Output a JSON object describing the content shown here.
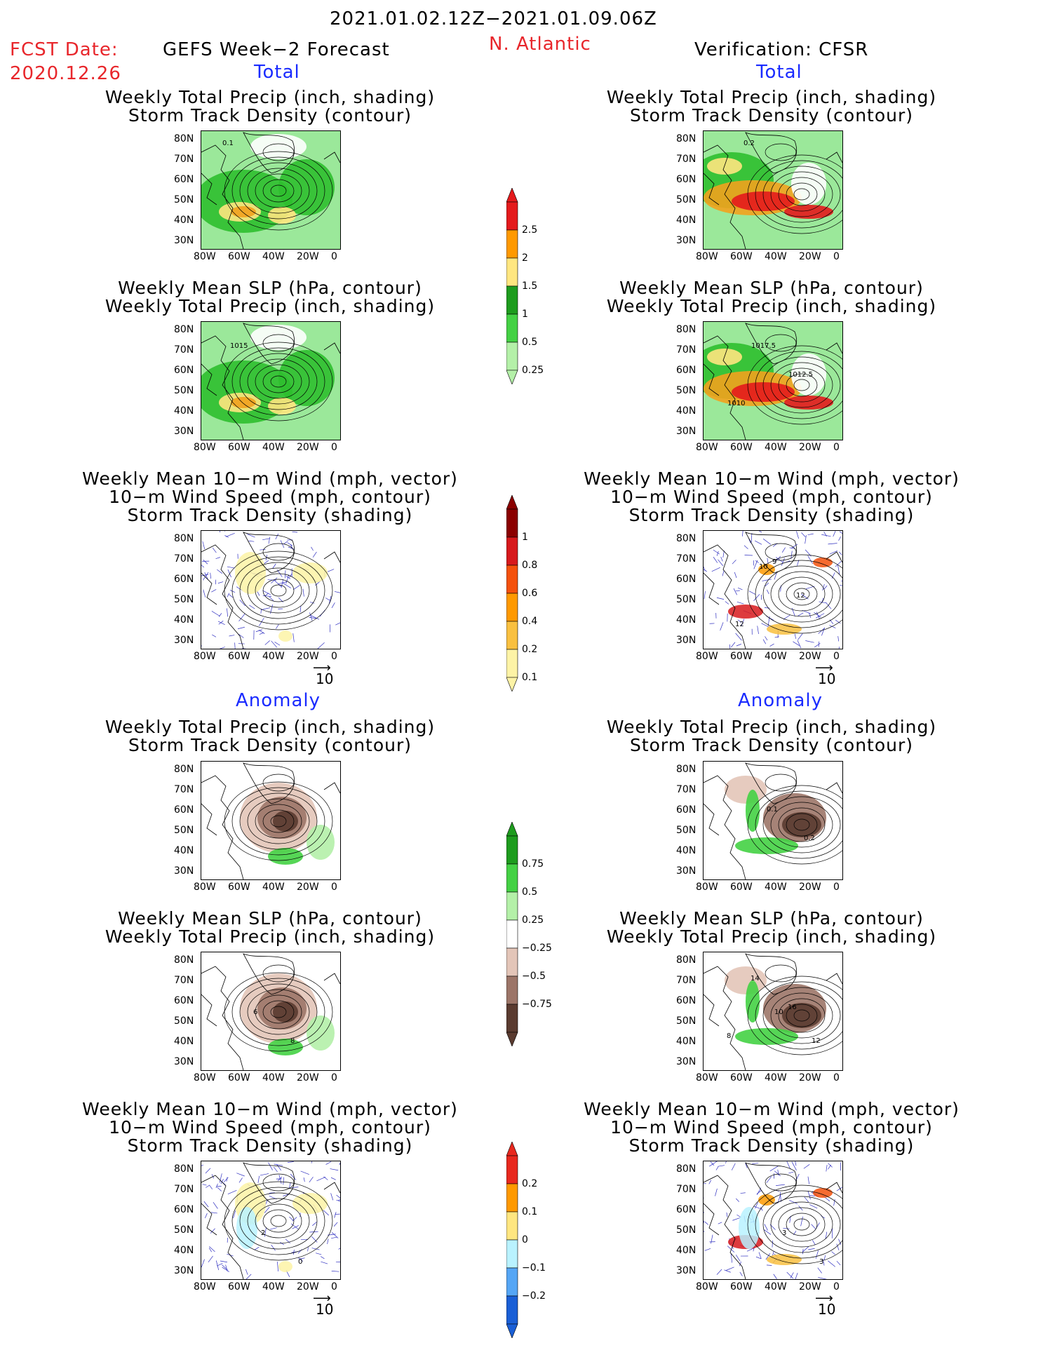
{
  "header": {
    "period": "2021.01.02.12Z−2021.01.09.06Z",
    "fcst_date_label": "FCST Date:",
    "fcst_date": "2020.12.26",
    "left_title": "GEFS Week−2 Forecast",
    "region": "N. Atlantic",
    "right_title": "Verification: CFSR"
  },
  "sections": {
    "total": "Total",
    "anomaly": "Anomaly"
  },
  "panel_titles": {
    "precip_track": [
      "Weekly Total Precip (inch, shading)",
      "Storm Track Density (contour)"
    ],
    "slp_precip": [
      "Weekly Mean SLP (hPa, contour)",
      "Weekly Total Precip (inch, shading)"
    ],
    "wind_track": [
      "Weekly Mean 10−m Wind (mph, vector)",
      "10−m Wind Speed (mph, contour)",
      "Storm Track Density (shading)"
    ]
  },
  "axes": {
    "lat_ticks": [
      "80N",
      "70N",
      "60N",
      "50N",
      "40N",
      "30N"
    ],
    "lon_ticks": [
      "80W",
      "60W",
      "40W",
      "20W",
      "0"
    ]
  },
  "contour_labels": {
    "fcst_total_precip": [
      "0.1"
    ],
    "verif_total_precip": [
      "0.2"
    ],
    "fcst_total_slp": [
      "1015"
    ],
    "verif_total_slp": [
      "1017.5",
      "1012.5",
      "1010"
    ],
    "verif_total_wind": [
      "10",
      "12",
      "12",
      "9"
    ],
    "fcst_anom_slp": [
      "6",
      "8"
    ],
    "verif_anom_precip": [
      "0.1",
      "0.2"
    ],
    "verif_anom_slp": [
      "10",
      "12",
      "14",
      "16",
      "8"
    ],
    "fcst_anom_wind": [
      "2",
      "0"
    ],
    "verif_anom_wind": [
      "3",
      "3"
    ]
  },
  "vector_ref": "10",
  "colorbars": {
    "precip_total": {
      "labels": [
        "2.5",
        "2",
        "1.5",
        "1",
        "0.5",
        "0.25"
      ],
      "colors": [
        "#e41a1c",
        "#ff9900",
        "#ffe680",
        "#1e9c1e",
        "#44d144",
        "#b4f0a8"
      ]
    },
    "track_total": {
      "labels": [
        "1",
        "0.8",
        "0.6",
        "0.4",
        "0.2",
        "0.1"
      ],
      "colors": [
        "#8b0000",
        "#d7191c",
        "#f4510c",
        "#ff9900",
        "#f9c040",
        "#fdf3a6"
      ]
    },
    "precip_anom": {
      "labels": [
        "0.75",
        "0.5",
        "0.25",
        "−0.25",
        "−0.5",
        "−0.75"
      ],
      "colors": [
        "#1e9c1e",
        "#44d144",
        "#b4f0a8",
        "#ffffff",
        "#e3c5b8",
        "#9c7568",
        "#5a3b30"
      ]
    },
    "track_anom": {
      "labels": [
        "0.2",
        "0.1",
        "0",
        "−0.1",
        "−0.2"
      ],
      "colors": [
        "#e8281e",
        "#ff9900",
        "#ffe680",
        "#b9f2ff",
        "#55a6f5",
        "#1a5fd6"
      ]
    }
  }
}
